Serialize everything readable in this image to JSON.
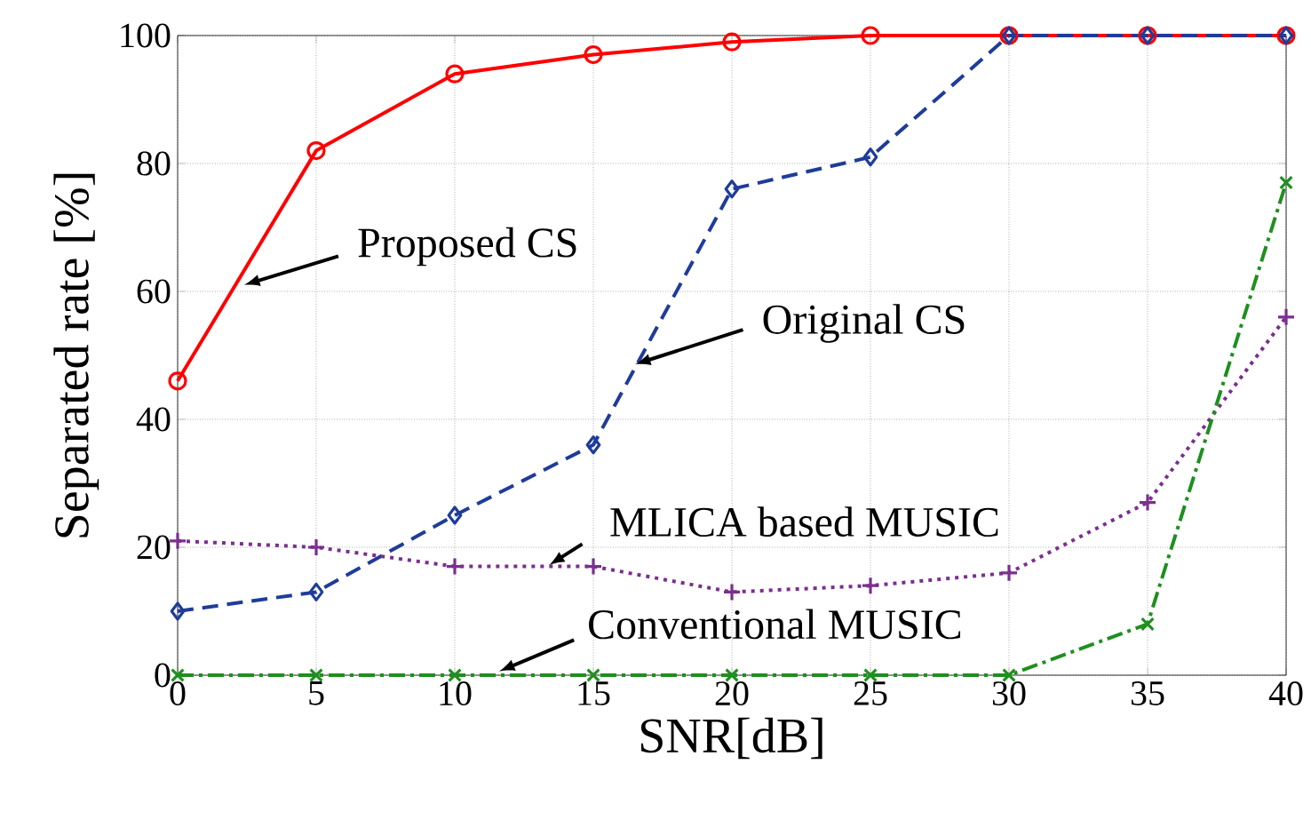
{
  "chart_data": {
    "type": "line",
    "xlabel": "SNR[dB]",
    "ylabel": "Separated rate [%]",
    "x": [
      0,
      5,
      10,
      15,
      20,
      25,
      30,
      35,
      40
    ],
    "series": [
      {
        "name": "Proposed CS",
        "color": "#ff0000",
        "marker": "circle",
        "line_style": "solid",
        "values": [
          46,
          82,
          94,
          97,
          99,
          100,
          100,
          100,
          100
        ]
      },
      {
        "name": "Original CS",
        "color": "#1f3c99",
        "marker": "diamond",
        "line_style": "dashed",
        "values": [
          10,
          13,
          25,
          36,
          76,
          81,
          100,
          100,
          100
        ]
      },
      {
        "name": "MLICA based MUSIC",
        "color": "#7b2f8f",
        "marker": "plus",
        "line_style": "dotted",
        "values": [
          21,
          20,
          17,
          17,
          13,
          14,
          16,
          27,
          56
        ]
      },
      {
        "name": "Conventional MUSIC",
        "color": "#1f8f1f",
        "marker": "cross",
        "line_style": "dashdot",
        "values": [
          0,
          0,
          0,
          0,
          0,
          0,
          0,
          8,
          77
        ]
      }
    ],
    "xlim": [
      0,
      40
    ],
    "ylim": [
      0,
      100
    ],
    "xticks": [
      0,
      5,
      10,
      15,
      20,
      25,
      30,
      35,
      40
    ],
    "yticks": [
      0,
      20,
      40,
      60,
      80,
      100
    ],
    "grid": true
  }
}
